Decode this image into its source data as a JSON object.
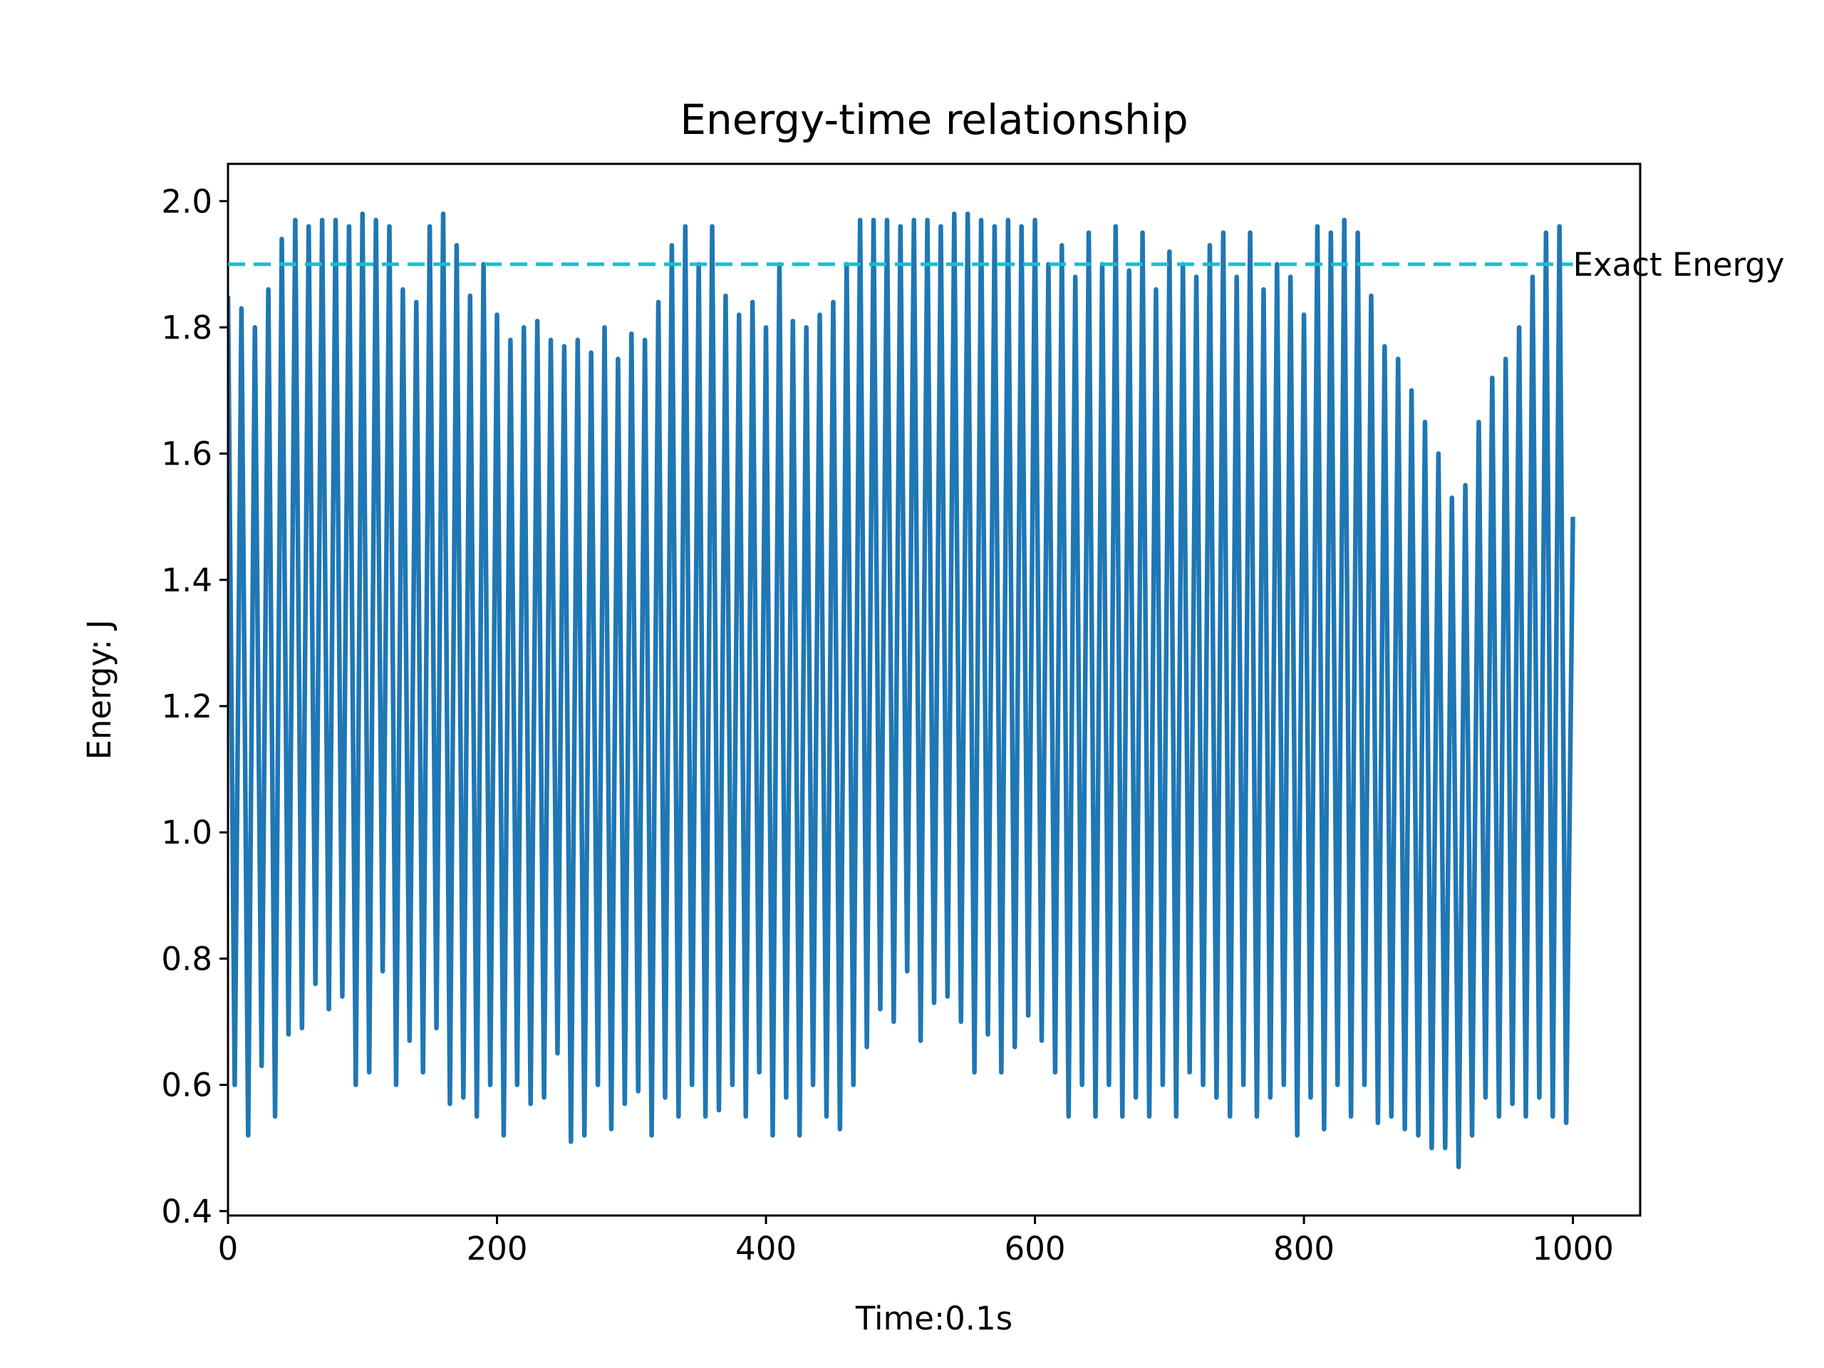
{
  "chart_data": {
    "type": "line",
    "title": "Energy-time relationship",
    "x_label": "Time:0.1s",
    "y_label": "Energy: J",
    "xlim": [
      0,
      1050
    ],
    "ylim": [
      0.393,
      2.059
    ],
    "xticks": [
      0,
      200,
      400,
      600,
      800,
      1000
    ],
    "yticks": [
      {
        "value": 0.4,
        "label": "0.4"
      },
      {
        "value": 0.6,
        "label": "0.6"
      },
      {
        "value": 0.8,
        "label": "0.8"
      },
      {
        "value": 1.0,
        "label": "1.0"
      },
      {
        "value": 1.2,
        "label": "1.2"
      },
      {
        "value": 1.4,
        "label": "1.4"
      },
      {
        "value": 1.6,
        "label": "1.6"
      },
      {
        "value": 1.8,
        "label": "1.8"
      },
      {
        "value": 2.0,
        "label": "2.0"
      }
    ],
    "x": [
      0,
      5,
      10,
      15,
      20,
      25,
      30,
      35,
      40,
      45,
      50,
      55,
      60,
      65,
      70,
      75,
      80,
      85,
      90,
      95,
      100,
      105,
      110,
      115,
      120,
      125,
      130,
      135,
      140,
      145,
      150,
      155,
      160,
      165,
      170,
      175,
      180,
      185,
      190,
      195,
      200,
      205,
      210,
      215,
      220,
      225,
      230,
      235,
      240,
      245,
      250,
      255,
      260,
      265,
      270,
      275,
      280,
      285,
      290,
      295,
      300,
      305,
      310,
      315,
      320,
      325,
      330,
      335,
      340,
      345,
      350,
      355,
      360,
      365,
      370,
      375,
      380,
      385,
      390,
      395,
      400,
      405,
      410,
      415,
      420,
      425,
      430,
      435,
      440,
      445,
      450,
      455,
      460,
      465,
      470,
      475,
      480,
      485,
      490,
      495,
      500,
      505,
      510,
      515,
      520,
      525,
      530,
      535,
      540,
      545,
      550,
      555,
      560,
      565,
      570,
      575,
      580,
      585,
      590,
      595,
      600,
      605,
      610,
      615,
      620,
      625,
      630,
      635,
      640,
      645,
      650,
      655,
      660,
      665,
      670,
      675,
      680,
      685,
      690,
      695,
      700,
      705,
      710,
      715,
      720,
      725,
      730,
      735,
      740,
      745,
      750,
      755,
      760,
      765,
      770,
      775,
      780,
      785,
      790,
      795,
      800,
      805,
      810,
      815,
      820,
      825,
      830,
      835,
      840,
      845,
      850,
      855,
      860,
      865,
      870,
      875,
      880,
      885,
      890,
      895,
      900,
      905,
      910,
      915,
      920,
      925,
      930,
      935,
      940,
      945,
      950,
      955,
      960,
      965,
      970,
      975,
      980,
      985,
      990,
      995,
      1000
    ],
    "series": [
      {
        "name": "Energy",
        "color": "#1f77b4",
        "values": [
          1.85,
          0.6,
          1.83,
          0.52,
          1.8,
          0.63,
          1.86,
          0.55,
          1.94,
          0.68,
          1.97,
          0.69,
          1.96,
          0.76,
          1.97,
          0.72,
          1.97,
          0.74,
          1.96,
          0.6,
          1.98,
          0.62,
          1.97,
          0.78,
          1.96,
          0.6,
          1.86,
          0.67,
          1.84,
          0.62,
          1.96,
          0.69,
          1.98,
          0.57,
          1.93,
          0.58,
          1.85,
          0.55,
          1.9,
          0.6,
          1.82,
          0.52,
          1.78,
          0.6,
          1.8,
          0.57,
          1.81,
          0.58,
          1.78,
          0.65,
          1.77,
          0.51,
          1.78,
          0.52,
          1.76,
          0.6,
          1.8,
          0.53,
          1.75,
          0.57,
          1.79,
          0.59,
          1.78,
          0.52,
          1.84,
          0.58,
          1.93,
          0.55,
          1.96,
          0.6,
          1.9,
          0.55,
          1.96,
          0.56,
          1.85,
          0.6,
          1.82,
          0.55,
          1.84,
          0.62,
          1.8,
          0.52,
          1.9,
          0.58,
          1.81,
          0.52,
          1.8,
          0.6,
          1.82,
          0.55,
          1.84,
          0.53,
          1.9,
          0.6,
          1.97,
          0.66,
          1.97,
          0.72,
          1.97,
          0.7,
          1.96,
          0.78,
          1.97,
          0.67,
          1.97,
          0.73,
          1.96,
          0.74,
          1.98,
          0.7,
          1.98,
          0.62,
          1.97,
          0.68,
          1.96,
          0.62,
          1.97,
          0.66,
          1.96,
          0.71,
          1.97,
          0.67,
          1.9,
          0.62,
          1.93,
          0.55,
          1.88,
          0.6,
          1.95,
          0.55,
          1.9,
          0.6,
          1.96,
          0.55,
          1.89,
          0.58,
          1.95,
          0.55,
          1.86,
          0.6,
          1.92,
          0.55,
          1.9,
          0.62,
          1.88,
          0.6,
          1.93,
          0.58,
          1.95,
          0.55,
          1.88,
          0.6,
          1.95,
          0.55,
          1.86,
          0.58,
          1.9,
          0.6,
          1.88,
          0.52,
          1.82,
          0.58,
          1.96,
          0.53,
          1.95,
          0.6,
          1.97,
          0.55,
          1.95,
          0.6,
          1.85,
          0.54,
          1.77,
          0.55,
          1.75,
          0.53,
          1.7,
          0.52,
          1.65,
          0.5,
          1.6,
          0.5,
          1.53,
          0.47,
          1.55,
          0.52,
          1.65,
          0.58,
          1.72,
          0.55,
          1.75,
          0.57,
          1.8,
          0.55,
          1.88,
          0.58,
          1.95,
          0.55,
          1.96,
          0.54,
          1.5
        ]
      }
    ],
    "reference_line": {
      "value": 1.9,
      "xmin": 0,
      "xmax": 1000,
      "color": "#17becf",
      "dashed": true
    },
    "annotations": [
      {
        "text": "Exact Energy",
        "x": 1000,
        "y": 1.9
      }
    ]
  }
}
